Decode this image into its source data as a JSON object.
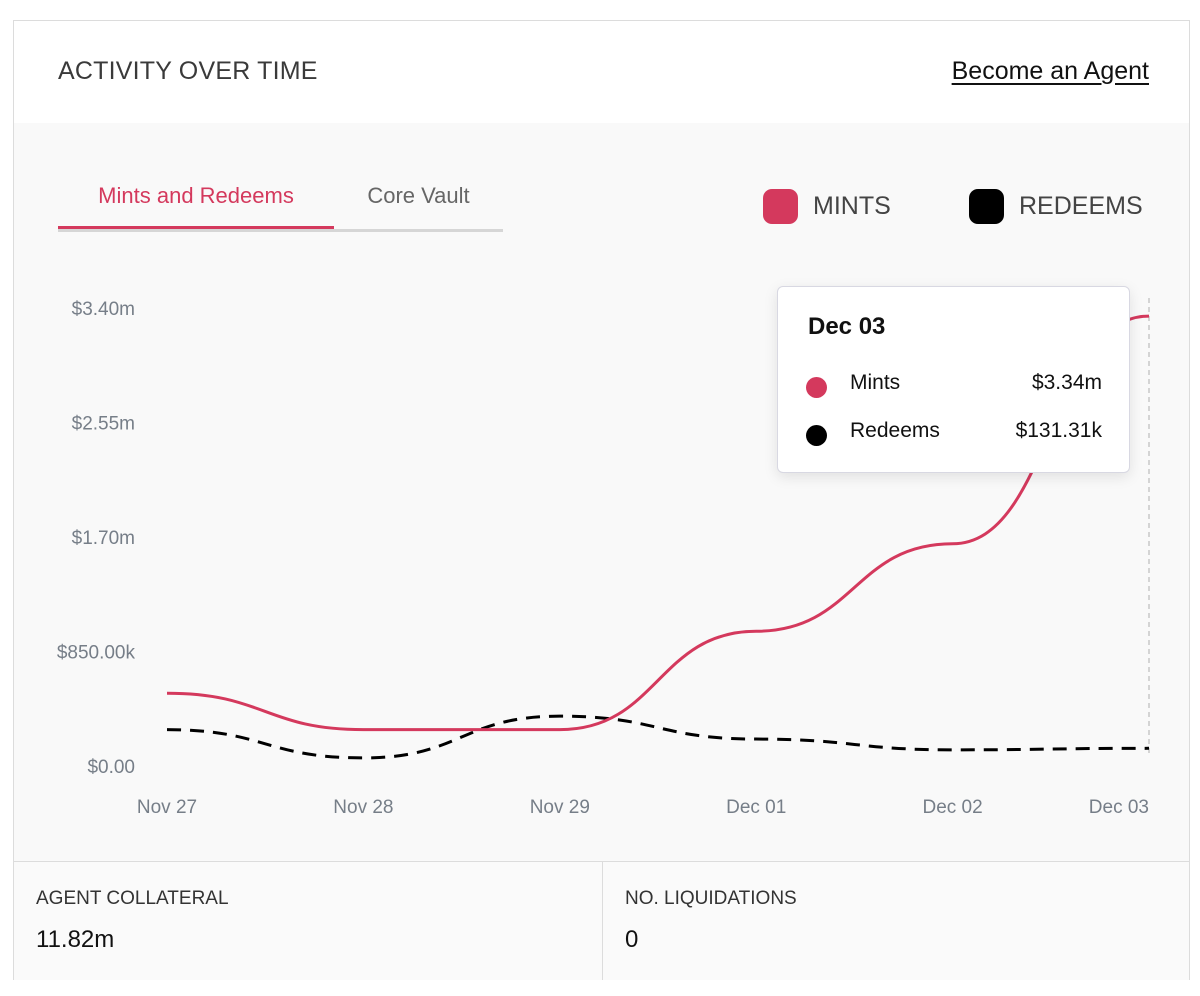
{
  "header": {
    "title": "ACTIVITY OVER TIME",
    "link_label": "Become an Agent"
  },
  "tabs": [
    {
      "label": "Mints and Redeems",
      "active": true
    },
    {
      "label": "Core Vault",
      "active": false
    }
  ],
  "legend": [
    {
      "label": "MINTS",
      "color": "#d4395d"
    },
    {
      "label": "REDEEMS",
      "color": "#000000"
    }
  ],
  "tooltip": {
    "date": "Dec 03",
    "rows": [
      {
        "name": "Mints",
        "value": "$3.34m",
        "color": "#d4395d"
      },
      {
        "name": "Redeems",
        "value": "$131.31k",
        "color": "#000000"
      }
    ]
  },
  "stats": [
    {
      "label": "AGENT COLLATERAL",
      "value": "11.82m"
    },
    {
      "label": "NO. LIQUIDATIONS",
      "value": "0"
    }
  ],
  "chart_data": {
    "type": "line",
    "title": "ACTIVITY OVER TIME",
    "xlabel": "",
    "ylabel": "",
    "categories": [
      "Nov 27",
      "Nov 28",
      "Nov 29",
      "Dec 01",
      "Dec 02",
      "Dec 03"
    ],
    "ylim": [
      0,
      3400000
    ],
    "y_ticks": [
      {
        "value": 0,
        "label": "$0.00"
      },
      {
        "value": 850000,
        "label": "$850.00k"
      },
      {
        "value": 1700000,
        "label": "$1.70m"
      },
      {
        "value": 2550000,
        "label": "$2.55m"
      },
      {
        "value": 3400000,
        "label": "$3.40m"
      }
    ],
    "series": [
      {
        "name": "Mints",
        "color": "#d4395d",
        "style": "solid",
        "values": [
          540000,
          270000,
          270000,
          1000000,
          1650000,
          3340000
        ]
      },
      {
        "name": "Redeems",
        "color": "#000000",
        "style": "dashed",
        "values": [
          270000,
          60000,
          370000,
          200000,
          120000,
          131310
        ]
      }
    ],
    "grid": false,
    "legend_position": "top-right"
  }
}
